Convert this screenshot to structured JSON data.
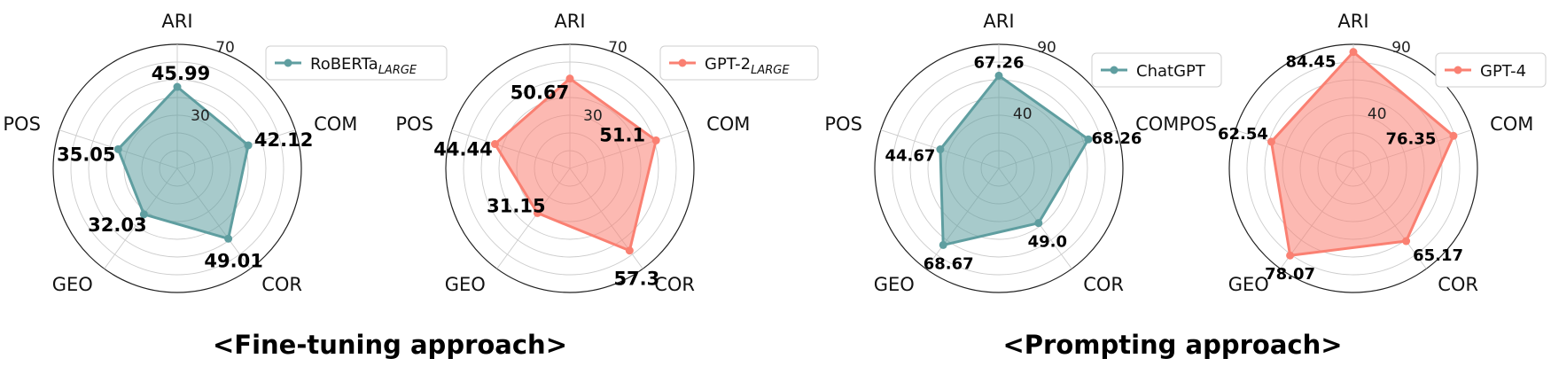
{
  "captions": {
    "fine_tuning": "<Fine-tuning approach>",
    "prompting": "<Prompting approach>"
  },
  "colors": {
    "teal": "#5f9ea0",
    "salmon": "#fa8072"
  },
  "chart_data": [
    {
      "type": "radar",
      "group": "fine_tuning",
      "axes": [
        "ARI",
        "COM",
        "COR",
        "GEO",
        "POS"
      ],
      "series": [
        {
          "name": "RoBERTa",
          "name_subscript": "LARGE",
          "values": [
            45.99,
            42.12,
            49.01,
            32.03,
            35.05
          ],
          "color": "#5f9ea0"
        }
      ],
      "data_labels": [
        "45.99",
        "42.12",
        "49.01",
        "32.03",
        "35.05"
      ],
      "rlim": [
        0,
        70
      ],
      "tick_labels": [
        "30",
        "70"
      ],
      "tick_values": [
        30,
        70
      ],
      "grid": true,
      "legend": "top-right"
    },
    {
      "type": "radar",
      "group": "fine_tuning",
      "axes": [
        "ARI",
        "COM",
        "COR",
        "GEO",
        "POS"
      ],
      "series": [
        {
          "name": "GPT-2",
          "name_subscript": "LARGE",
          "values": [
            50.67,
            51.1,
            57.3,
            31.15,
            44.44
          ],
          "color": "#fa8072"
        }
      ],
      "data_labels": [
        "50.67",
        "51.1",
        "57.3",
        "31.15",
        "44.44"
      ],
      "rlim": [
        0,
        70
      ],
      "tick_labels": [
        "30",
        "70"
      ],
      "tick_values": [
        30,
        70
      ],
      "grid": true,
      "legend": "top-right"
    },
    {
      "type": "radar",
      "group": "prompting",
      "axes": [
        "ARI",
        "COM",
        "COR",
        "GEO",
        "POS"
      ],
      "series": [
        {
          "name": "ChatGPT",
          "name_subscript": "",
          "values": [
            67.26,
            68.26,
            49.0,
            68.67,
            44.67
          ],
          "color": "#5f9ea0"
        }
      ],
      "data_labels": [
        "67.26",
        "68.26",
        "49.0",
        "68.67",
        "44.67"
      ],
      "rlim": [
        0,
        90
      ],
      "tick_labels": [
        "40",
        "90"
      ],
      "tick_values": [
        40,
        90
      ],
      "grid": true,
      "legend": "top-right"
    },
    {
      "type": "radar",
      "group": "prompting",
      "axes": [
        "ARI",
        "COM",
        "COR",
        "GEO",
        "POS"
      ],
      "series": [
        {
          "name": "GPT-4",
          "name_subscript": "",
          "values": [
            84.45,
            76.35,
            65.17,
            78.07,
            62.54
          ],
          "color": "#fa8072"
        }
      ],
      "data_labels": [
        "84.45",
        "76.35",
        "65.17",
        "78.07",
        "62.54"
      ],
      "rlim": [
        0,
        90
      ],
      "tick_labels": [
        "40",
        "90"
      ],
      "tick_values": [
        40,
        90
      ],
      "grid": true,
      "legend": "top-right"
    }
  ]
}
